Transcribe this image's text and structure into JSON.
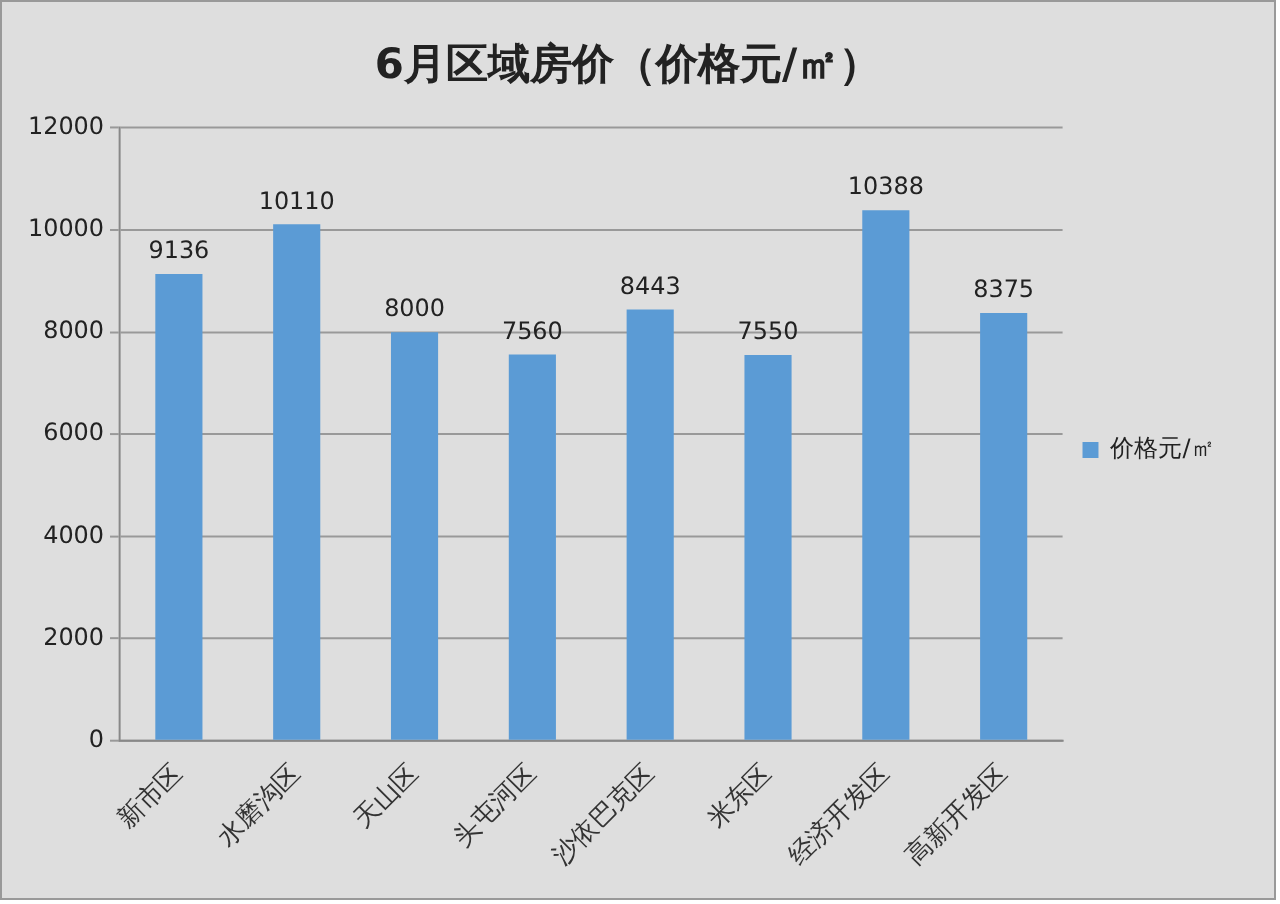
{
  "chart_data": {
    "type": "bar",
    "title": "6月区域房价（价格元/㎡）",
    "categories": [
      "新市区",
      "水磨沟区",
      "天山区",
      "头屯河区",
      "沙依巴克区",
      "米东区",
      "经济开发区",
      "高新开发区"
    ],
    "series": [
      {
        "name": "价格元/㎡",
        "color": "#5b9bd5",
        "values": [
          9136,
          10110,
          8000,
          7560,
          8443,
          7550,
          10388,
          8375
        ]
      }
    ],
    "ylim": [
      0,
      12000
    ],
    "yticks": [
      0,
      2000,
      4000,
      6000,
      8000,
      10000,
      12000
    ],
    "grid": "y",
    "legend": "right",
    "data_labels": true
  }
}
